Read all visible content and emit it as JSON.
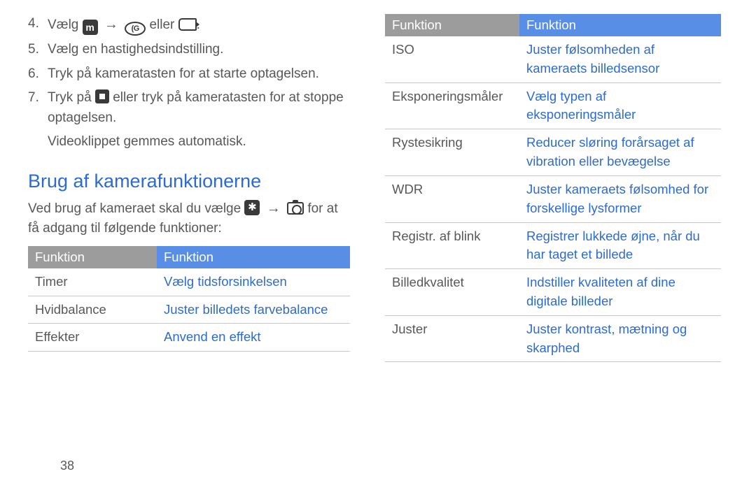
{
  "steps": [
    {
      "num": "4.",
      "pre": "Vælg ",
      "post_arrow": " eller ",
      "tail": "."
    },
    {
      "num": "5.",
      "text": "Vælg en hastighedsindstilling."
    },
    {
      "num": "6.",
      "text": "Tryk på kameratasten for at starte optagelsen."
    },
    {
      "num": "7.",
      "pre": "Tryk på ",
      "post": " eller tryk på kameratasten for at stoppe optagelsen."
    }
  ],
  "sub_note": "Videoklippet gemmes automatisk.",
  "heading": "Brug af kamerafunktionerne",
  "intro_pre": "Ved brug af kameraet skal du vælge ",
  "intro_post": " for at få adgang til følgende funktioner:",
  "table1_headers": [
    "Funktion",
    "Funktion"
  ],
  "table1_rows": [
    {
      "label": "Timer",
      "desc": "Vælg tidsforsinkelsen"
    },
    {
      "label": "Hvidbalance",
      "desc": "Juster billedets farvebalance"
    },
    {
      "label": "Effekter",
      "desc": "Anvend en effekt"
    }
  ],
  "table2_headers": [
    "Funktion",
    "Funktion"
  ],
  "table2_rows": [
    {
      "label": "ISO",
      "desc": "Juster følsomheden af kameraets billedsensor"
    },
    {
      "label": "Eksponeringsmåler",
      "desc": "Vælg typen af eksponeringsmåler"
    },
    {
      "label": "Rystesikring",
      "desc": "Reducer sløring forårsaget af vibration eller bevægelse"
    },
    {
      "label": "WDR",
      "desc": "Juster kameraets følsomhed for forskellige lysformer"
    },
    {
      "label": "Registr. af blink",
      "desc": "Registrer lukkede øjne, når du har taget et billede"
    },
    {
      "label": "Billedkvalitet",
      "desc": "Indstiller kvaliteten af dine digitale billeder"
    },
    {
      "label": "Juster",
      "desc": "Juster kontrast, mætning og skarphed"
    }
  ],
  "page_number": "38",
  "colors": {
    "body_text": "#585858",
    "link_blue": "#2d6bcf",
    "th_grey": "#9c9c9c",
    "th_blue": "#588ee6",
    "border": "#c8c8c8",
    "icon_dark": "#3a3a3a"
  }
}
